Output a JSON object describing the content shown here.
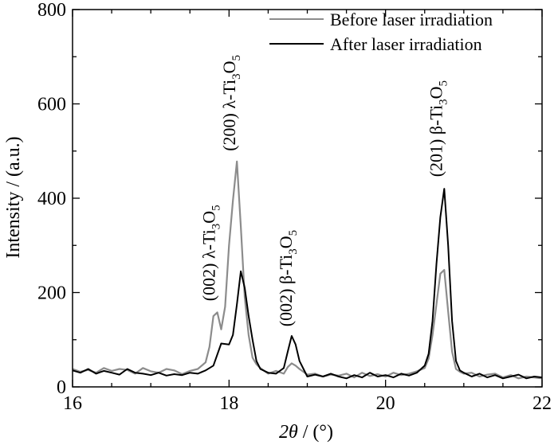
{
  "chart_data": {
    "type": "line",
    "xlabel_symbol": "2θ",
    "xlabel_unit": " / (°)",
    "ylabel": "Intensity / (a.u.)",
    "xlim": [
      16,
      22
    ],
    "ylim": [
      0,
      800
    ],
    "xticks": [
      16,
      18,
      20,
      22
    ],
    "yticks": [
      0,
      200,
      400,
      600,
      800
    ],
    "grid": false,
    "legend_position": "top-right",
    "series": [
      {
        "name": "Before laser irradiation",
        "color": "#8c8c8c",
        "x": [
          16.0,
          16.1,
          16.2,
          16.3,
          16.4,
          16.5,
          16.6,
          16.7,
          16.8,
          16.9,
          17.0,
          17.1,
          17.2,
          17.3,
          17.4,
          17.5,
          17.6,
          17.7,
          17.75,
          17.8,
          17.85,
          17.9,
          17.95,
          18.0,
          18.05,
          18.1,
          18.15,
          18.2,
          18.25,
          18.3,
          18.35,
          18.4,
          18.5,
          18.6,
          18.7,
          18.75,
          18.8,
          18.85,
          18.9,
          19.0,
          19.1,
          19.2,
          19.3,
          19.4,
          19.5,
          19.6,
          19.7,
          19.8,
          19.9,
          20.0,
          20.1,
          20.2,
          20.3,
          20.4,
          20.5,
          20.55,
          20.6,
          20.65,
          20.7,
          20.75,
          20.8,
          20.85,
          20.9,
          20.95,
          21.0,
          21.1,
          21.2,
          21.3,
          21.4,
          21.5,
          21.6,
          21.7,
          21.8,
          21.9,
          22.0
        ],
        "y": [
          38,
          32,
          36,
          30,
          40,
          34,
          38,
          36,
          28,
          40,
          33,
          30,
          38,
          35,
          27,
          34,
          38,
          52,
          85,
          150,
          158,
          122,
          170,
          300,
          395,
          478,
          340,
          190,
          110,
          62,
          48,
          40,
          28,
          34,
          28,
          42,
          50,
          45,
          38,
          26,
          28,
          22,
          26,
          24,
          28,
          20,
          30,
          23,
          27,
          22,
          30,
          25,
          28,
          33,
          40,
          60,
          110,
          175,
          240,
          248,
          160,
          75,
          38,
          32,
          28,
          30,
          22,
          26,
          28,
          20,
          25,
          18,
          22,
          20,
          18
        ]
      },
      {
        "name": "After laser irradiation",
        "color": "#000000",
        "x": [
          16.0,
          16.1,
          16.2,
          16.3,
          16.4,
          16.5,
          16.6,
          16.7,
          16.8,
          16.9,
          17.0,
          17.1,
          17.2,
          17.3,
          17.4,
          17.5,
          17.6,
          17.7,
          17.8,
          17.9,
          18.0,
          18.05,
          18.1,
          18.15,
          18.2,
          18.25,
          18.3,
          18.35,
          18.4,
          18.5,
          18.6,
          18.7,
          18.75,
          18.8,
          18.85,
          18.9,
          19.0,
          19.1,
          19.2,
          19.3,
          19.4,
          19.5,
          19.6,
          19.7,
          19.8,
          19.9,
          20.0,
          20.1,
          20.2,
          20.3,
          20.4,
          20.5,
          20.55,
          20.6,
          20.65,
          20.7,
          20.75,
          20.8,
          20.85,
          20.9,
          20.95,
          21.0,
          21.1,
          21.2,
          21.3,
          21.4,
          21.5,
          21.6,
          21.7,
          21.8,
          21.9,
          22.0
        ],
        "y": [
          35,
          30,
          38,
          28,
          34,
          30,
          26,
          38,
          30,
          28,
          25,
          30,
          24,
          27,
          25,
          30,
          28,
          35,
          45,
          92,
          90,
          110,
          175,
          245,
          210,
          150,
          100,
          55,
          38,
          30,
          28,
          40,
          75,
          108,
          90,
          55,
          22,
          26,
          22,
          28,
          22,
          18,
          25,
          20,
          30,
          22,
          25,
          20,
          28,
          24,
          30,
          45,
          70,
          140,
          260,
          360,
          420,
          300,
          140,
          55,
          35,
          30,
          22,
          28,
          20,
          25,
          18,
          22,
          26,
          18,
          22,
          20
        ]
      }
    ],
    "annotations": [
      {
        "pre": "(002) λ-Ti",
        "sub1": "3",
        "mid": "O",
        "sub2": "5",
        "x": 17.82,
        "y": 182
      },
      {
        "pre": "(200) λ-Ti",
        "sub1": "3",
        "mid": "O",
        "sub2": "5",
        "x": 18.08,
        "y": 500
      },
      {
        "pre": "(002) β-Ti",
        "sub1": "3",
        "mid": "O",
        "sub2": "5",
        "x": 18.8,
        "y": 128
      },
      {
        "pre": "(201) β-Ti",
        "sub1": "3",
        "mid": "O",
        "sub2": "5",
        "x": 20.72,
        "y": 445
      }
    ]
  }
}
